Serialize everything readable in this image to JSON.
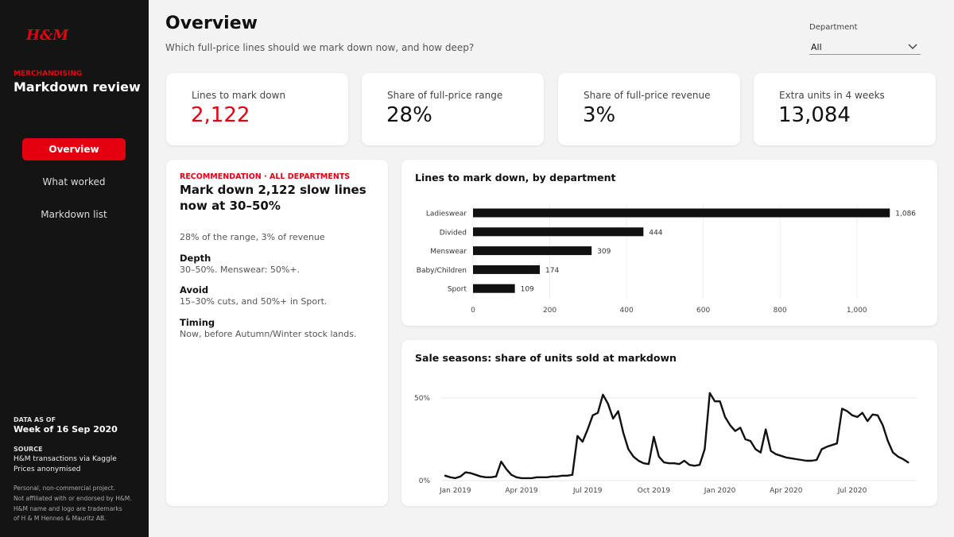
{
  "sidebar": {
    "logo": "H&M",
    "section": "MERCHANDISING",
    "title": "Markdown review",
    "nav": [
      "Overview",
      "What worked",
      "Markdown list"
    ],
    "data_as_of_label": "DATA AS OF",
    "data_as_of": "Week of 16 Sep 2020",
    "source_label": "SOURCE",
    "source": [
      "H&M transactions via Kaggle",
      "Prices anonymised"
    ],
    "note": [
      "Personal, non-commercial project.",
      "Not affiliated with or endorsed by H&M.",
      "H&M name and logo are trademarks",
      "of H & M Hennes & Mauritz AB."
    ]
  },
  "header": {
    "title": "Overview",
    "subtitle": "Which full-price lines should we mark down now, and how deep?",
    "filter_label": "Department",
    "filter_value": "All"
  },
  "kpis": [
    {
      "label": "Lines to mark down",
      "value": "2,122"
    },
    {
      "label": "Share of full-price range",
      "value": "28%"
    },
    {
      "label": "Share of full-price revenue",
      "value": "3%"
    },
    {
      "label": "Extra units in 4 weeks",
      "value": "13,084"
    }
  ],
  "recommendation": {
    "kicker": "RECOMMENDATION · ALL DEPARTMENTS",
    "headline": "Mark down 2,122 slow lines now at 30–50%",
    "summary": "28% of the range, 3% of revenue",
    "sections": [
      {
        "heading": "Depth",
        "text": "30–50%. Menswear: 50%+."
      },
      {
        "heading": "Avoid",
        "text": "15–30% cuts, and 50%+ in Sport."
      },
      {
        "heading": "Timing",
        "text": "Now, before Autumn/Winter stock lands."
      }
    ]
  },
  "chart_data": [
    {
      "type": "hbar",
      "title": "Lines to mark down, by department",
      "categories": [
        "Ladieswear",
        "Divided",
        "Menswear",
        "Baby/Children",
        "Sport"
      ],
      "values": [
        1086,
        444,
        309,
        174,
        109
      ],
      "value_labels": [
        "1,086",
        "444",
        "309",
        "174",
        "109"
      ],
      "color": "#111111",
      "xlim": [
        0,
        1160
      ],
      "xticks": [
        0,
        200,
        400,
        600,
        800,
        {
          "value": 1000,
          "label": "1,000"
        }
      ],
      "grid": true
    },
    {
      "type": "line",
      "title": "Sale seasons: share of units sold at markdown",
      "categories": [
        null,
        null,
        "Jan 2019",
        null,
        null,
        null,
        null,
        null,
        null,
        null,
        null,
        null,
        null,
        null,
        null,
        "Apr 2019",
        null,
        null,
        null,
        null,
        null,
        null,
        null,
        null,
        null,
        null,
        null,
        null,
        "Jul 2019",
        null,
        null,
        null,
        null,
        null,
        null,
        null,
        null,
        null,
        null,
        null,
        null,
        "Oct 2019",
        null,
        null,
        null,
        null,
        null,
        null,
        null,
        null,
        null,
        null,
        null,
        null,
        "Jan 2020",
        null,
        null,
        null,
        null,
        null,
        null,
        null,
        null,
        null,
        null,
        null,
        null,
        "Apr 2020",
        null,
        null,
        null,
        null,
        null,
        null,
        null,
        null,
        null,
        null,
        null,
        null,
        "Jul 2020",
        null,
        null,
        null,
        null,
        null,
        null,
        null,
        null,
        null,
        null,
        null
      ],
      "values": [
        3,
        2,
        1.5,
        2.5,
        5,
        4.5,
        3.5,
        2.5,
        2,
        2,
        2.5,
        11.5,
        7,
        3.5,
        2,
        1.5,
        1.5,
        1.5,
        2,
        2,
        2,
        2.5,
        2.5,
        3,
        3,
        3.5,
        27,
        23.5,
        31,
        39.5,
        41,
        52,
        46.5,
        37.5,
        42,
        29,
        19,
        14.5,
        12,
        10.5,
        10,
        26.5,
        14.5,
        11,
        10.5,
        10.5,
        10,
        12,
        9.5,
        9,
        9.5,
        19,
        53,
        48,
        48,
        38.5,
        33.5,
        30,
        32,
        25,
        24,
        19,
        17,
        31,
        18,
        16,
        15,
        14,
        13.5,
        13,
        12.5,
        12,
        12,
        12.5,
        19,
        20.5,
        21.5,
        22.5,
        43.5,
        42,
        39.5,
        38.5,
        41,
        36,
        40,
        39.5,
        33.5,
        24,
        17,
        14.5,
        13,
        11
      ],
      "color": "#111111",
      "ylim": [
        0,
        55
      ],
      "yticks": [
        {
          "value": 0,
          "label": "0%"
        },
        {
          "value": 50,
          "label": "50%"
        }
      ],
      "grid": true
    }
  ]
}
